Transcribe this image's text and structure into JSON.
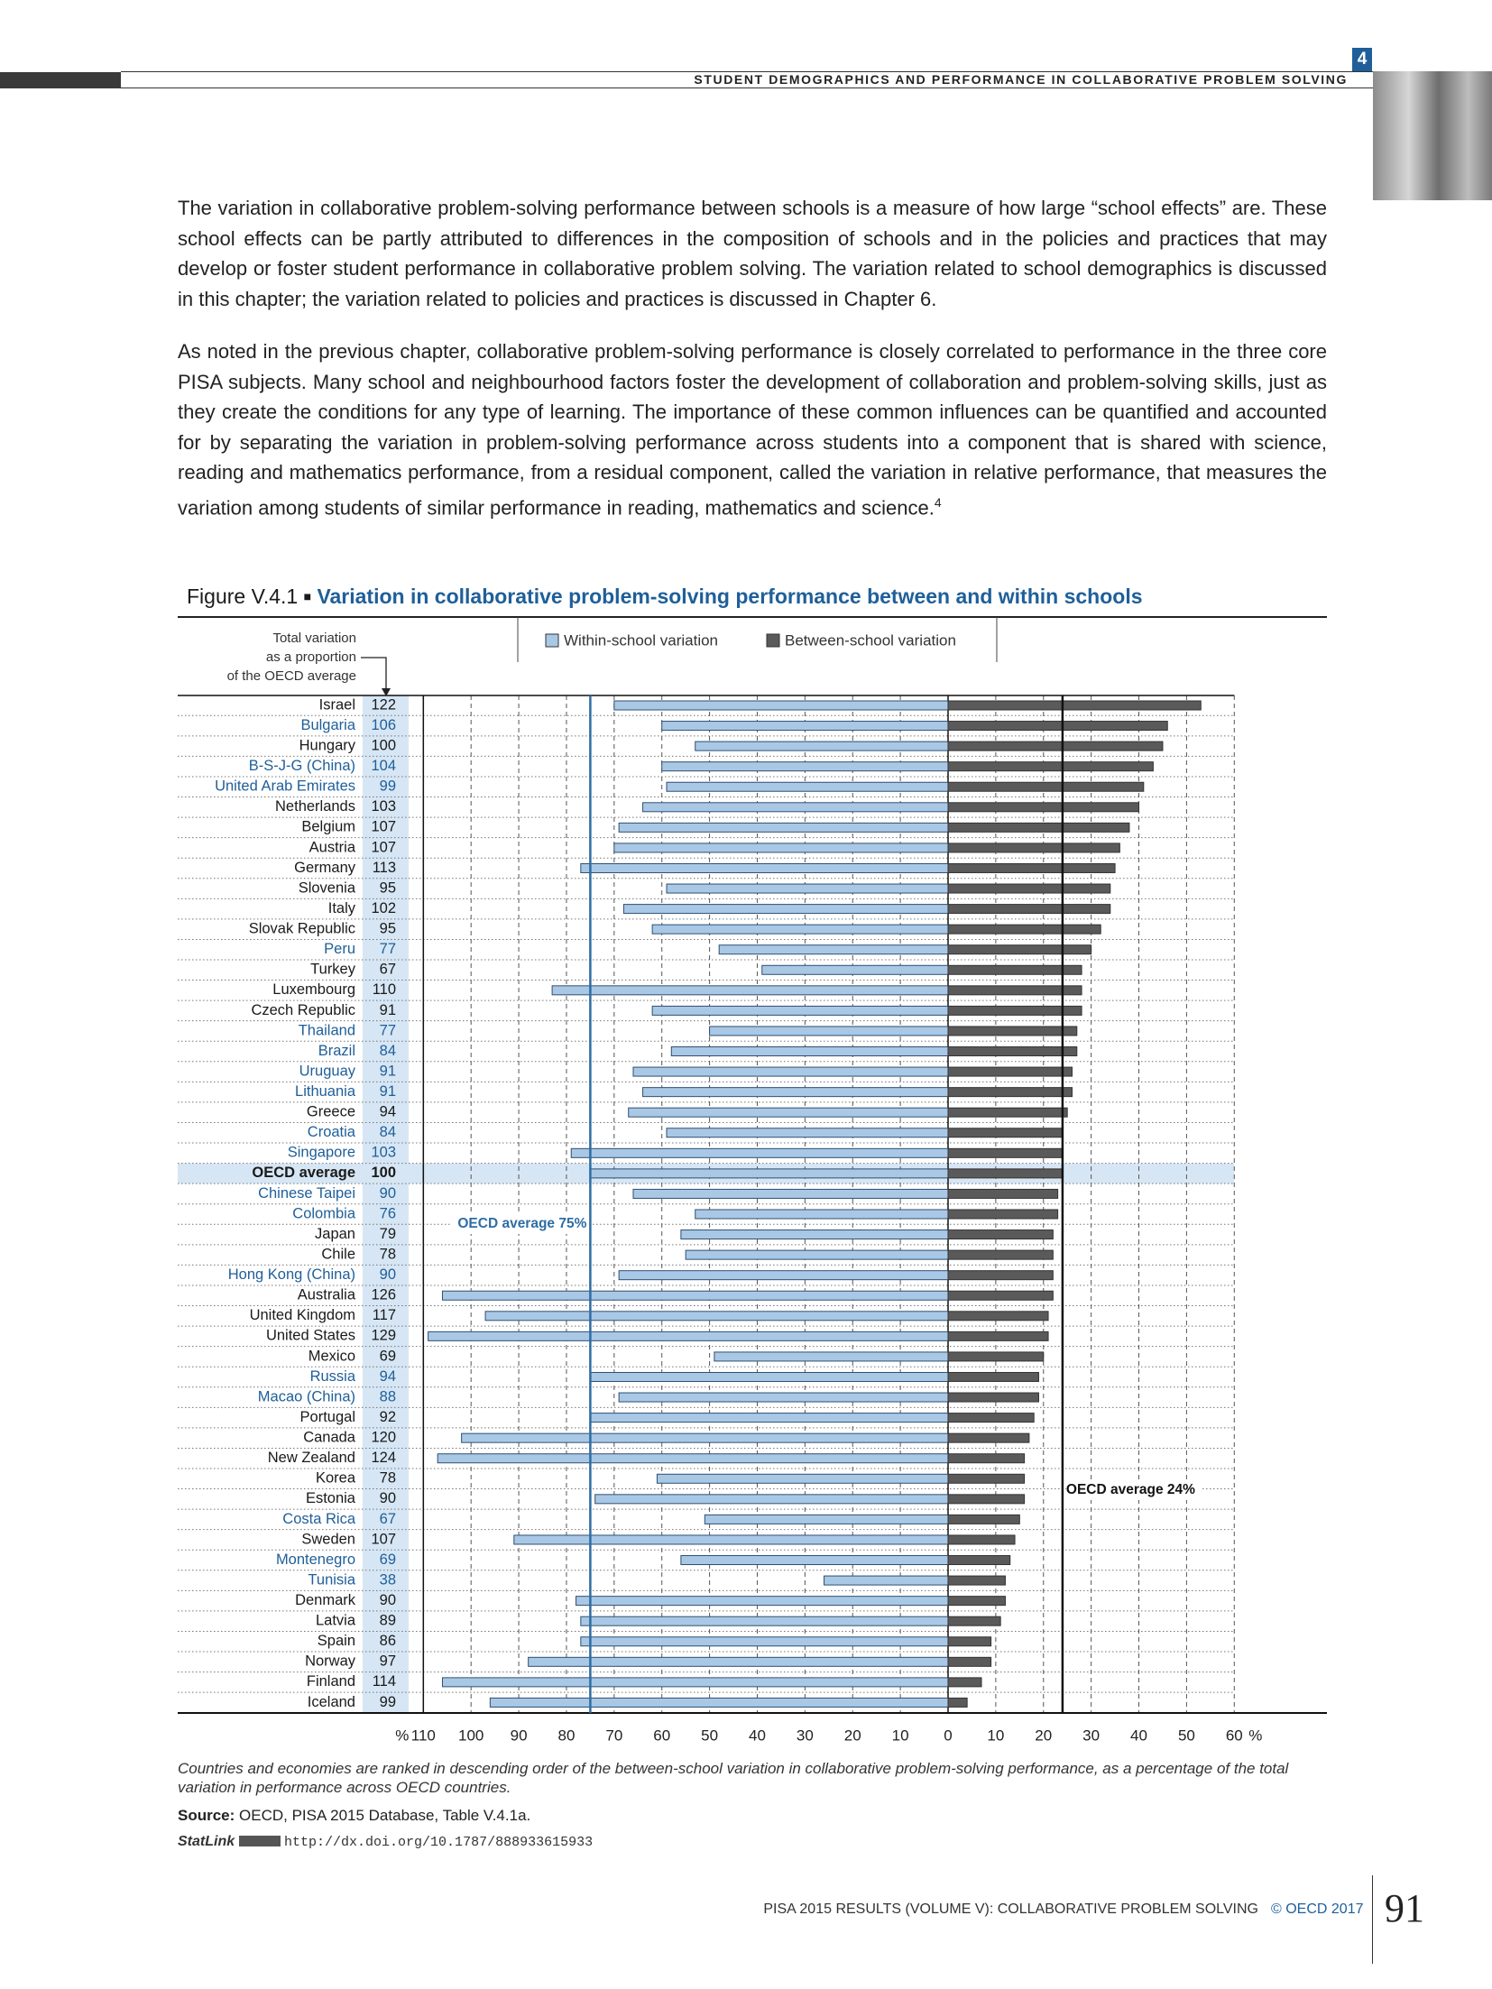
{
  "header": {
    "chapter": "4",
    "running_title": "STUDENT DEMOGRAPHICS AND PERFORMANCE IN COLLABORATIVE PROBLEM SOLVING"
  },
  "paragraphs": [
    {
      "text": "The variation in collaborative problem-solving performance between schools is a measure of how large “school effects” are. These school effects can be partly attributed to differences in the composition of schools and in the policies and practices that may develop or foster student performance in collaborative problem solving. The variation related to school demographics is discussed in this chapter; the variation related to policies and practices is discussed in Chapter 6."
    },
    {
      "text": "As noted in the previous chapter, collaborative problem-solving performance is closely correlated to performance in the three core PISA subjects. Many school and neighbourhood factors foster the development of collaboration and problem-solving skills, just as they create the conditions for any type of learning. The importance of these common influences can be quantified and accounted for by separating the variation in problem-solving performance across students into a component that is shared with science, reading and mathematics performance, from a residual component, called the variation in relative performance, that measures the variation among students of similar performance in reading, mathematics and science.",
      "note": "4"
    }
  ],
  "figure": {
    "label": "Figure V.4.1",
    "title": "Variation in collaborative problem-solving performance between and within schools",
    "note": "Countries and economies are ranked in descending order of the between-school variation in collaborative problem-solving performance, as a percentage of the total variation in performance across OECD countries.",
    "source_label": "Source:",
    "source_text": "OECD, PISA 2015 Database, Table V.4.1a.",
    "statlink_label": "StatLink",
    "statlink_url": "http://dx.doi.org/10.1787/888933615933"
  },
  "chart_data": {
    "type": "diverging-bar",
    "total_header": [
      "Total variation",
      "as a proportion",
      "of the OECD average"
    ],
    "categories": [
      "Israel",
      "Bulgaria",
      "Hungary",
      "B-S-J-G (China)",
      "United Arab Emirates",
      "Netherlands",
      "Belgium",
      "Austria",
      "Germany",
      "Slovenia",
      "Italy",
      "Slovak Republic",
      "Peru",
      "Turkey",
      "Luxembourg",
      "Czech Republic",
      "Thailand",
      "Brazil",
      "Uruguay",
      "Lithuania",
      "Greece",
      "Croatia",
      "Singapore",
      "OECD average",
      "Chinese Taipei",
      "Colombia",
      "Japan",
      "Chile",
      "Hong Kong (China)",
      "Australia",
      "United Kingdom",
      "United States",
      "Mexico",
      "Russia",
      "Macao (China)",
      "Portugal",
      "Canada",
      "New Zealand",
      "Korea",
      "Estonia",
      "Costa Rica",
      "Sweden",
      "Montenegro",
      "Tunisia",
      "Denmark",
      "Latvia",
      "Spain",
      "Norway",
      "Finland",
      "Iceland"
    ],
    "category_colors": [
      "#1a1a1a",
      "#1f5f99",
      "#1a1a1a",
      "#1f5f99",
      "#1f5f99",
      "#1a1a1a",
      "#1a1a1a",
      "#1a1a1a",
      "#1a1a1a",
      "#1a1a1a",
      "#1a1a1a",
      "#1a1a1a",
      "#1f5f99",
      "#1a1a1a",
      "#1a1a1a",
      "#1a1a1a",
      "#1f5f99",
      "#1f5f99",
      "#1f5f99",
      "#1f5f99",
      "#1a1a1a",
      "#1f5f99",
      "#1f5f99",
      "#1a1a1a",
      "#1f5f99",
      "#1f5f99",
      "#1a1a1a",
      "#1a1a1a",
      "#1f5f99",
      "#1a1a1a",
      "#1a1a1a",
      "#1a1a1a",
      "#1a1a1a",
      "#1f5f99",
      "#1f5f99",
      "#1a1a1a",
      "#1a1a1a",
      "#1a1a1a",
      "#1a1a1a",
      "#1a1a1a",
      "#1f5f99",
      "#1a1a1a",
      "#1f5f99",
      "#1f5f99",
      "#1a1a1a",
      "#1a1a1a",
      "#1a1a1a",
      "#1a1a1a",
      "#1a1a1a",
      "#1a1a1a"
    ],
    "highlight": 23,
    "total_values": [
      122,
      106,
      100,
      104,
      99,
      103,
      107,
      107,
      113,
      95,
      102,
      95,
      77,
      67,
      110,
      91,
      77,
      84,
      91,
      91,
      94,
      84,
      103,
      100,
      90,
      76,
      79,
      78,
      90,
      126,
      117,
      129,
      69,
      94,
      88,
      92,
      120,
      124,
      78,
      90,
      67,
      107,
      69,
      38,
      90,
      89,
      86,
      97,
      114,
      99
    ],
    "series": [
      {
        "name": "Within-school variation",
        "color": "#a9c8e6",
        "side": "left",
        "values": [
          70,
          60,
          53,
          60,
          59,
          64,
          69,
          70,
          77,
          59,
          68,
          62,
          48,
          39,
          83,
          62,
          50,
          58,
          66,
          64,
          67,
          59,
          79,
          75,
          66,
          53,
          56,
          55,
          69,
          106,
          97,
          109,
          49,
          75,
          69,
          75,
          102,
          107,
          61,
          74,
          51,
          91,
          56,
          26,
          78,
          77,
          77,
          88,
          106,
          96
        ]
      },
      {
        "name": "Between-school variation",
        "color": "#5a5a5a",
        "side": "right",
        "values": [
          53,
          46,
          45,
          43,
          41,
          40,
          38,
          36,
          35,
          34,
          34,
          32,
          30,
          28,
          28,
          28,
          27,
          27,
          26,
          26,
          25,
          24,
          24,
          24,
          23,
          23,
          22,
          22,
          22,
          22,
          21,
          21,
          20,
          19,
          19,
          18,
          17,
          16,
          16,
          16,
          15,
          14,
          13,
          12,
          12,
          11,
          9,
          9,
          7,
          4
        ]
      }
    ],
    "reference_lines": [
      {
        "series": 0,
        "value": 75,
        "label": "OECD average 75%",
        "color": "#2e6da4"
      },
      {
        "series": 1,
        "value": 24,
        "label": "OECD average 24%",
        "color": "#111111"
      }
    ],
    "xlim_left": [
      0,
      110
    ],
    "xlim_right": [
      0,
      60
    ],
    "xticks_left": [
      110,
      100,
      90,
      80,
      70,
      60,
      50,
      40,
      30,
      20,
      10
    ],
    "xticks_right": [
      0,
      10,
      20,
      30,
      40,
      50,
      60
    ],
    "x_unit": "%",
    "grid": true
  },
  "footer": {
    "publication": "PISA 2015 RESULTS (VOLUME V): COLLABORATIVE PROBLEM SOLVING",
    "copyright": "© OECD 2017",
    "page": "91"
  }
}
